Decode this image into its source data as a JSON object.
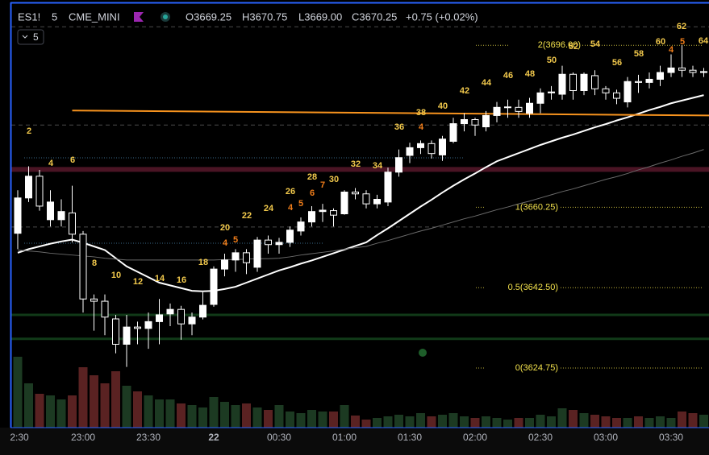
{
  "chart_data": {
    "type": "candlestick",
    "symbol": "ES1!",
    "interval": "5",
    "exchange": "CME_MINI",
    "ohlc_text": [
      "O3669.25",
      "H3670.75",
      "L3669.00",
      "C3670.25",
      "+0.75 (+0.02%)"
    ],
    "interval_button": "5",
    "categories": [
      "2:30",
      null,
      null,
      null,
      null,
      null,
      "23:00",
      null,
      null,
      null,
      null,
      null,
      "23:30",
      null,
      null,
      null,
      null,
      null,
      "22",
      null,
      null,
      null,
      null,
      null,
      "00:30",
      null,
      null,
      null,
      null,
      null,
      "01:00",
      null,
      null,
      null,
      null,
      null,
      "01:30",
      null,
      null,
      null,
      null,
      null,
      "02:00",
      null,
      null,
      null,
      null,
      null,
      "02:30",
      null,
      null,
      null,
      null,
      null,
      "03:00",
      null,
      null,
      null,
      null,
      null,
      "03:30",
      null,
      null,
      null
    ],
    "open": [
      3654.5,
      3662.3,
      3667.1,
      3657.5,
      3657.5,
      3659,
      3654.3,
      3640,
      3639.5,
      3635.6,
      3630,
      3633.8,
      3633.5,
      3635,
      3636.7,
      3637.7,
      3634.5,
      3636,
      3638.8,
      3646.6,
      3648.6,
      3650.2,
      3647,
      3653,
      3652,
      3652.5,
      3655,
      3657,
      3659.3,
      3659.5,
      3658.8,
      3663.6,
      3663.2,
      3661,
      3661.4,
      3668,
      3671.7,
      3673.4,
      3674.3,
      3671.8,
      3674.8,
      3678.7,
      3679.6,
      3678,
      3680.5,
      3682.3,
      3682.3,
      3681,
      3683.2,
      3685.5,
      3685.2,
      3689.6,
      3686,
      3689.3,
      3686.4,
      3685.5,
      3683.5,
      3688,
      3687.8,
      3688.5,
      3690,
      3691,
      3690.5,
      3690
    ],
    "high": [
      3664,
      3669.3,
      3668.5,
      3664,
      3662,
      3665,
      3655,
      3641,
      3641,
      3636.5,
      3636.5,
      3635,
      3637,
      3640,
      3639,
      3638.5,
      3637,
      3641.5,
      3647.2,
      3650,
      3651,
      3651,
      3653.7,
      3654,
      3653.5,
      3656,
      3658,
      3660.5,
      3661,
      3660,
      3664,
      3664.5,
      3664,
      3663,
      3669,
      3673,
      3674.5,
      3675,
      3675,
      3676,
      3680,
      3681,
      3680,
      3681.5,
      3683.5,
      3684,
      3684,
      3684.4,
      3686.5,
      3687,
      3691.5,
      3690,
      3690,
      3690.5,
      3687,
      3686.2,
      3689,
      3689.5,
      3690,
      3691.5,
      3694,
      3696,
      3691.5,
      3691
    ],
    "low": [
      3651,
      3661.4,
      3659.5,
      3656,
      3656,
      3652.5,
      3637,
      3633,
      3632,
      3628,
      3625,
      3630,
      3629,
      3630,
      3634,
      3631,
      3632,
      3635.5,
      3638.3,
      3645,
      3646,
      3645.5,
      3646,
      3650,
      3650,
      3651.5,
      3654,
      3656,
      3657,
      3656,
      3658.6,
      3662,
      3660,
      3660,
      3660.5,
      3667,
      3670,
      3672,
      3671,
      3670.5,
      3674.4,
      3677,
      3676,
      3677,
      3679,
      3680,
      3680,
      3680,
      3681,
      3684,
      3684,
      3684,
      3685,
      3685,
      3684,
      3683,
      3682.3,
      3685.5,
      3686.5,
      3687,
      3689,
      3689,
      3689,
      3689
    ],
    "close": [
      3662.3,
      3667.1,
      3660.5,
      3661.4,
      3659.3,
      3654.3,
      3640,
      3639.5,
      3636,
      3630,
      3633.8,
      3633.5,
      3635,
      3636.5,
      3637.7,
      3634.5,
      3636,
      3638.6,
      3646.6,
      3648.6,
      3650.2,
      3648,
      3653,
      3652,
      3652.5,
      3655.2,
      3657,
      3659.3,
      3659.6,
      3658.5,
      3663.6,
      3663.2,
      3661,
      3662,
      3668,
      3671.2,
      3673.4,
      3674.3,
      3672.1,
      3675.3,
      3678.7,
      3679.6,
      3678.4,
      3680.5,
      3682.3,
      3682.4,
      3681.4,
      3683.2,
      3685.5,
      3685.7,
      3689.6,
      3686,
      3689.6,
      3686.4,
      3685.5,
      3684.3,
      3688,
      3687.8,
      3688.5,
      3690,
      3691,
      3690.5,
      3690,
      3690.2
    ],
    "volume": [
      88,
      55,
      42,
      40,
      35,
      40,
      75,
      65,
      55,
      70,
      52,
      45,
      40,
      35,
      35,
      30,
      28,
      25,
      38,
      32,
      28,
      30,
      25,
      22,
      28,
      20,
      18,
      22,
      20,
      20,
      28,
      15,
      10,
      12,
      14,
      16,
      14,
      18,
      14,
      16,
      18,
      14,
      12,
      14,
      12,
      10,
      12,
      12,
      16,
      14,
      24,
      22,
      18,
      16,
      14,
      12,
      12,
      14,
      12,
      14,
      12,
      20,
      18,
      16
    ],
    "up_color": "#ffffff",
    "down_color": "#000000",
    "volume_up_color": "#1c3a22",
    "volume_down_color": "#5a2222",
    "ylim": [
      3611.6,
      3706.0
    ],
    "vlim": [
      0,
      100
    ],
    "series": [
      {
        "color": "#ffffff",
        "values": [
          3650.2,
          3651.0,
          3651.6,
          3652.2,
          3652.7,
          3653.1,
          3652.4,
          3651.6,
          3650.8,
          3649.0,
          3647.2,
          3646.0,
          3644.8,
          3643.6,
          3643.0,
          3642.4,
          3641.8,
          3641.7,
          3641.8,
          3642.2,
          3642.7,
          3643.6,
          3644.5,
          3645.4,
          3646.3,
          3647.0,
          3647.8,
          3648.5,
          3649.3,
          3650.1,
          3650.9,
          3651.7,
          3652.5,
          3654.1,
          3655.6,
          3657.2,
          3658.8,
          3660.4,
          3661.9,
          3663.5,
          3665.0,
          3666.4,
          3667.7,
          3669.1,
          3670.4,
          3671.3,
          3672.2,
          3673.1,
          3674.0,
          3674.8,
          3675.6,
          3676.3,
          3677.1,
          3677.9,
          3678.6,
          3679.4,
          3680.1,
          3680.9,
          3681.7,
          3682.4,
          3683.2,
          3683.8,
          3684.4,
          3685.0
        ]
      },
      {
        "color": "#6b6b6b",
        "values": [
          3650.8,
          3650.6,
          3650.4,
          3650.1,
          3649.9,
          3649.7,
          3649.5,
          3649.3,
          3649.0,
          3648.8,
          3648.6,
          3648.6,
          3648.6,
          3648.6,
          3648.6,
          3648.6,
          3648.6,
          3648.6,
          3648.6,
          3648.7,
          3648.7,
          3648.8,
          3648.9,
          3648.9,
          3649.0,
          3649.3,
          3649.7,
          3650.0,
          3650.3,
          3650.6,
          3651.0,
          3651.3,
          3651.6,
          3652.3,
          3652.9,
          3653.6,
          3654.3,
          3655.0,
          3655.6,
          3656.3,
          3657.0,
          3657.7,
          3658.3,
          3659.0,
          3659.7,
          3660.3,
          3661.0,
          3661.6,
          3662.3,
          3663.0,
          3663.7,
          3664.3,
          3665.0,
          3665.7,
          3666.4,
          3667.0,
          3667.7,
          3668.5,
          3669.2,
          3670.0,
          3670.7,
          3671.5,
          3672.2,
          3673.0
        ]
      }
    ],
    "trendline": {
      "color": "#f7931e",
      "values": [
        3681.6,
        3680.5
      ]
    },
    "levels": [
      {
        "value": 3700.1,
        "color": "#4a4a4a",
        "style": "dashed"
      },
      {
        "value": 3678.4,
        "color": "#4a4a4a",
        "style": "dashed"
      },
      {
        "value": 3655.9,
        "color": "#4a4a4a",
        "style": "dashed"
      },
      {
        "value": 3668.6,
        "color": "#4a1424",
        "style": "band"
      },
      {
        "value": 3636.5,
        "color": "#113a18",
        "style": "band"
      },
      {
        "value": 3631.2,
        "color": "#113a18",
        "style": "band"
      }
    ],
    "fib_levels": [
      {
        "value": 3696.0,
        "label": "2(3696.00)"
      },
      {
        "value": 3660.25,
        "label": "1(3660.25)"
      },
      {
        "value": 3642.5,
        "label": "0.5(3642.50)"
      },
      {
        "value": 3624.75,
        "label": "0(3624.75)"
      }
    ],
    "annotations": [
      {
        "text": "2",
        "color": "#f2c94c"
      },
      {
        "text": "4",
        "color": "#f2c94c"
      },
      {
        "text": "6",
        "color": "#f2c94c"
      },
      {
        "text": "8",
        "color": "#f2c94c"
      },
      {
        "text": "10",
        "color": "#f2c94c"
      },
      {
        "text": "12",
        "color": "#f2c94c"
      },
      {
        "text": "14",
        "color": "#f2c94c"
      },
      {
        "text": "16",
        "color": "#f2c94c"
      },
      {
        "text": "18",
        "color": "#f2c94c"
      },
      {
        "text": "20",
        "color": "#f2c94c"
      },
      {
        "text": "4",
        "color": "#f07d1a"
      },
      {
        "text": "5",
        "color": "#f07d1a"
      },
      {
        "text": "22",
        "color": "#f2c94c"
      },
      {
        "text": "24",
        "color": "#f2c94c"
      },
      {
        "text": "26",
        "color": "#f2c94c"
      },
      {
        "text": "4",
        "color": "#f07d1a"
      },
      {
        "text": "5",
        "color": "#f07d1a"
      },
      {
        "text": "28",
        "color": "#f2c94c"
      },
      {
        "text": "6",
        "color": "#f07d1a"
      },
      {
        "text": "7",
        "color": "#f07d1a"
      },
      {
        "text": "30",
        "color": "#f2c94c"
      },
      {
        "text": "32",
        "color": "#f2c94c"
      },
      {
        "text": "34",
        "color": "#f2c94c"
      },
      {
        "text": "36",
        "color": "#f2c94c"
      },
      {
        "text": "38",
        "color": "#f2c94c"
      },
      {
        "text": "4",
        "color": "#f07d1a"
      },
      {
        "text": "40",
        "color": "#f2c94c"
      },
      {
        "text": "42",
        "color": "#f2c94c"
      },
      {
        "text": "44",
        "color": "#f2c94c"
      },
      {
        "text": "46",
        "color": "#f2c94c"
      },
      {
        "text": "48",
        "color": "#f2c94c"
      },
      {
        "text": "50",
        "color": "#f2c94c"
      },
      {
        "text": "52",
        "color": "#f2c94c"
      },
      {
        "text": "54",
        "color": "#f2c94c"
      },
      {
        "text": "56",
        "color": "#f2c94c"
      },
      {
        "text": "58",
        "color": "#f2c94c"
      },
      {
        "text": "60",
        "color": "#f2c94c"
      },
      {
        "text": "4",
        "color": "#f07d1a"
      },
      {
        "text": "62",
        "color": "#f2c94c"
      },
      {
        "text": "5",
        "color": "#f07d1a"
      },
      {
        "text": "64",
        "color": "#f2c94c"
      }
    ]
  }
}
